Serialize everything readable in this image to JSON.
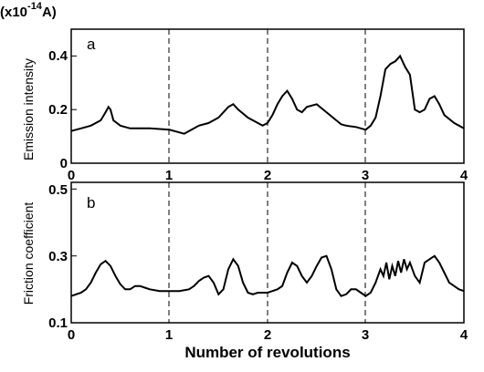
{
  "chart_data": [
    {
      "type": "line",
      "panel_label": "a",
      "unit_label": "(x10",
      "unit_exponent": "-14",
      "unit_suffix": "A)",
      "ylabel": "Emission intensity",
      "xlabel": "",
      "xlim": [
        0,
        4
      ],
      "ylim": [
        0,
        0.5
      ],
      "xticks": [
        "0",
        "1",
        "2",
        "3",
        "4"
      ],
      "yticks": [
        "0",
        "0.2",
        "0.4"
      ],
      "ytick_values": [
        0,
        0.2,
        0.4
      ],
      "vlines": [
        1,
        2,
        3
      ],
      "series": [
        {
          "x": [
            0,
            0.1,
            0.2,
            0.3,
            0.35,
            0.38,
            0.4,
            0.43,
            0.5,
            0.6,
            0.8,
            1.0,
            1.1,
            1.15,
            1.2,
            1.3,
            1.4,
            1.5,
            1.6,
            1.65,
            1.7,
            1.8,
            1.9,
            1.95,
            2.0,
            2.05,
            2.1,
            2.15,
            2.2,
            2.25,
            2.3,
            2.35,
            2.4,
            2.5,
            2.6,
            2.7,
            2.75,
            2.8,
            2.9,
            3.0,
            3.05,
            3.1,
            3.15,
            3.2,
            3.25,
            3.3,
            3.35,
            3.4,
            3.45,
            3.5,
            3.55,
            3.6,
            3.65,
            3.7,
            3.75,
            3.8,
            3.9,
            4.0
          ],
          "y": [
            0.12,
            0.13,
            0.14,
            0.16,
            0.19,
            0.21,
            0.2,
            0.16,
            0.14,
            0.13,
            0.13,
            0.125,
            0.115,
            0.11,
            0.12,
            0.14,
            0.15,
            0.17,
            0.21,
            0.22,
            0.2,
            0.17,
            0.15,
            0.14,
            0.15,
            0.18,
            0.22,
            0.25,
            0.27,
            0.24,
            0.2,
            0.19,
            0.21,
            0.22,
            0.19,
            0.16,
            0.145,
            0.14,
            0.135,
            0.125,
            0.14,
            0.17,
            0.25,
            0.35,
            0.37,
            0.38,
            0.4,
            0.36,
            0.33,
            0.2,
            0.19,
            0.2,
            0.24,
            0.25,
            0.22,
            0.18,
            0.15,
            0.13
          ]
        }
      ]
    },
    {
      "type": "line",
      "panel_label": "b",
      "ylabel": "Friction coefficient",
      "xlabel": "Number of revolutions",
      "xlim": [
        0,
        4
      ],
      "ylim": [
        0.1,
        0.52
      ],
      "xticks": [
        "0",
        "1",
        "2",
        "3",
        "4"
      ],
      "yticks": [
        "0.1",
        "0.3",
        "0.5"
      ],
      "ytick_values": [
        0.1,
        0.3,
        0.5
      ],
      "vlines": [
        1,
        2,
        3
      ],
      "series": [
        {
          "x": [
            0,
            0.1,
            0.15,
            0.2,
            0.25,
            0.3,
            0.35,
            0.4,
            0.45,
            0.5,
            0.55,
            0.6,
            0.65,
            0.7,
            0.75,
            0.8,
            0.9,
            1.0,
            1.1,
            1.2,
            1.25,
            1.3,
            1.35,
            1.4,
            1.45,
            1.5,
            1.55,
            1.6,
            1.65,
            1.7,
            1.75,
            1.8,
            1.85,
            1.9,
            1.95,
            2.0,
            2.05,
            2.1,
            2.15,
            2.2,
            2.25,
            2.3,
            2.35,
            2.4,
            2.45,
            2.5,
            2.55,
            2.6,
            2.65,
            2.7,
            2.75,
            2.8,
            2.85,
            2.9,
            2.95,
            3.0,
            3.05,
            3.1,
            3.15,
            3.18,
            3.21,
            3.24,
            3.27,
            3.3,
            3.33,
            3.36,
            3.39,
            3.42,
            3.45,
            3.5,
            3.55,
            3.6,
            3.65,
            3.7,
            3.75,
            3.8,
            3.85,
            3.9,
            3.95,
            4.0
          ],
          "y": [
            0.18,
            0.19,
            0.2,
            0.22,
            0.25,
            0.275,
            0.285,
            0.27,
            0.24,
            0.215,
            0.2,
            0.2,
            0.21,
            0.21,
            0.205,
            0.2,
            0.195,
            0.195,
            0.195,
            0.2,
            0.21,
            0.225,
            0.235,
            0.24,
            0.22,
            0.185,
            0.2,
            0.26,
            0.29,
            0.27,
            0.22,
            0.19,
            0.185,
            0.19,
            0.19,
            0.19,
            0.195,
            0.2,
            0.21,
            0.25,
            0.28,
            0.27,
            0.24,
            0.22,
            0.24,
            0.27,
            0.295,
            0.3,
            0.26,
            0.2,
            0.18,
            0.185,
            0.2,
            0.2,
            0.19,
            0.18,
            0.19,
            0.22,
            0.26,
            0.24,
            0.28,
            0.23,
            0.27,
            0.24,
            0.285,
            0.25,
            0.29,
            0.26,
            0.28,
            0.24,
            0.22,
            0.28,
            0.29,
            0.3,
            0.28,
            0.25,
            0.22,
            0.21,
            0.2,
            0.195
          ]
        }
      ]
    }
  ]
}
